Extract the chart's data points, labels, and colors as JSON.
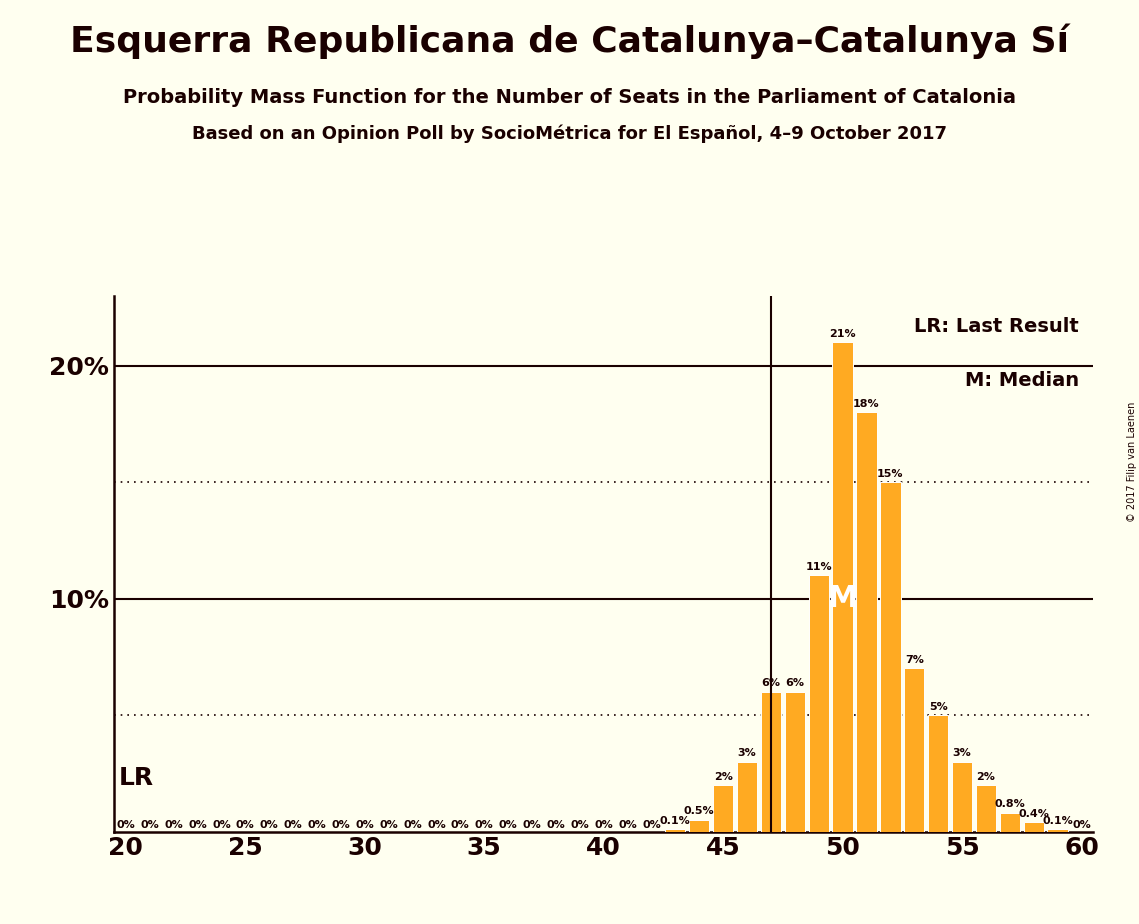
{
  "title": "Esquerra Republicana de Catalunya–Catalunya Sí",
  "subtitle1": "Probability Mass Function for the Number of Seats in the Parliament of Catalonia",
  "subtitle2": "Based on an Opinion Poll by SocioMétrica for El Español, 4–9 October 2017",
  "copyright": "© 2017 Filip van Laenen",
  "seats": [
    20,
    21,
    22,
    23,
    24,
    25,
    26,
    27,
    28,
    29,
    30,
    31,
    32,
    33,
    34,
    35,
    36,
    37,
    38,
    39,
    40,
    41,
    42,
    43,
    44,
    45,
    46,
    47,
    48,
    49,
    50,
    51,
    52,
    53,
    54,
    55,
    56,
    57,
    58,
    59,
    60
  ],
  "probabilities": [
    0,
    0,
    0,
    0,
    0,
    0,
    0,
    0,
    0,
    0,
    0,
    0,
    0,
    0,
    0,
    0,
    0,
    0,
    0,
    0,
    0,
    0,
    0,
    0.1,
    0.5,
    2,
    3,
    6,
    6,
    11,
    21,
    18,
    15,
    7,
    5,
    3,
    2,
    0.8,
    0.4,
    0.1,
    0
  ],
  "bar_color": "#FFAA22",
  "background_color": "#FFFFF0",
  "text_color": "#1a0000",
  "lr_seat": 47,
  "median_seat": 50,
  "dotted_line_levels": [
    5,
    15
  ],
  "solid_line_levels": [
    10,
    20
  ],
  "xlim": [
    19.5,
    60.5
  ],
  "ylim": [
    0,
    23
  ],
  "ytick_positions": [
    10,
    20
  ],
  "ytick_labels": [
    "10%",
    "20%"
  ],
  "xticks": [
    20,
    25,
    30,
    35,
    40,
    45,
    50,
    55,
    60
  ],
  "bar_width": 0.85,
  "label_fontsize": 8,
  "axis_fontsize": 18,
  "title_fontsize": 26,
  "subtitle1_fontsize": 14,
  "subtitle2_fontsize": 13,
  "legend_fontsize": 14,
  "lr_label_fontsize": 18,
  "median_label_fontsize": 22
}
